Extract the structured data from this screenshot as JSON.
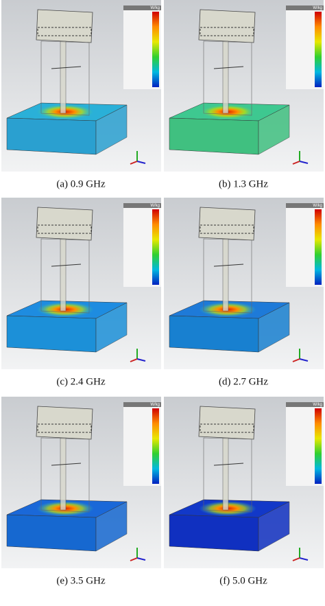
{
  "figure": {
    "panels": [
      {
        "caption": "(a) 0.9 GHz",
        "unit": "W/kg"
      },
      {
        "caption": "(b) 1.3 GHz",
        "unit": "W/kg"
      },
      {
        "caption": "(c) 2.4 GHz",
        "unit": "W/kg"
      },
      {
        "caption": "(d) 2.7 GHz",
        "unit": "W/kg"
      },
      {
        "caption": "(e) 3.5 GHz",
        "unit": "W/kg"
      },
      {
        "caption": "(f) 5.0 GHz",
        "unit": "W/kg"
      }
    ]
  }
}
